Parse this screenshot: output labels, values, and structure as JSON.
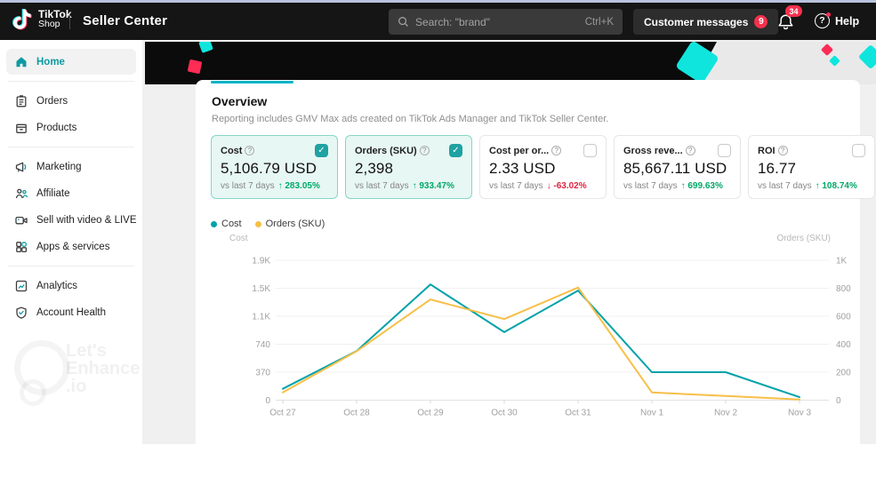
{
  "header": {
    "logo": {
      "line1": "TikTok",
      "line2": "Shop"
    },
    "app_title": "Seller Center",
    "search": {
      "icon": "search-icon",
      "placeholder": "Search: \"brand\"",
      "shortcut": "Ctrl+K"
    },
    "customer_messages": {
      "label": "Customer messages",
      "badge": "9"
    },
    "notifications": {
      "icon": "bell-icon",
      "badge": "34"
    },
    "help": {
      "icon": "question-circle-icon",
      "label": "Help"
    }
  },
  "sidebar": {
    "items": [
      {
        "label": "Home",
        "icon": "home-icon",
        "active": true,
        "divider_after": true
      },
      {
        "label": "Orders",
        "icon": "orders-icon"
      },
      {
        "label": "Products",
        "icon": "products-icon",
        "divider_after": true
      },
      {
        "label": "Marketing",
        "icon": "marketing-icon"
      },
      {
        "label": "Affiliate",
        "icon": "affiliate-icon"
      },
      {
        "label": "Sell with video & LIVE",
        "icon": "video-icon"
      },
      {
        "label": "Apps & services",
        "icon": "apps-icon",
        "divider_after": true
      },
      {
        "label": "Analytics",
        "icon": "analytics-icon"
      },
      {
        "label": "Account Health",
        "icon": "account-health-icon"
      }
    ],
    "watermark": {
      "line1": "Let's",
      "line2": "Enhance",
      "line3": ".io"
    }
  },
  "overview": {
    "title": "Overview",
    "subtitle": "Reporting includes GMV Max ads created on TikTok Ads Manager and TikTok Seller Center.",
    "cards": [
      {
        "label": "Cost",
        "value": "5,106.79 USD",
        "compare_label": "vs last 7 days",
        "delta": "283.05%",
        "direction": "up",
        "checked": true,
        "highlighted": true
      },
      {
        "label": "Orders (SKU)",
        "value": "2,398",
        "compare_label": "vs last 7 days",
        "delta": "933.47%",
        "direction": "up",
        "checked": true,
        "highlighted": true
      },
      {
        "label": "Cost per or...",
        "value": "2.33 USD",
        "compare_label": "vs last 7 days",
        "delta": "-63.02%",
        "direction": "down",
        "checked": false,
        "highlighted": false
      },
      {
        "label": "Gross reve...",
        "value": "85,667.11 USD",
        "compare_label": "vs last 7 days",
        "delta": "699.63%",
        "direction": "up",
        "checked": false,
        "highlighted": false
      },
      {
        "label": "ROI",
        "value": "16.77",
        "compare_label": "vs last 7 days",
        "delta": "108.74%",
        "direction": "up",
        "checked": false,
        "highlighted": false
      }
    ]
  },
  "chart_data": {
    "type": "line",
    "categories": [
      "Oct 27",
      "Oct 28",
      "Oct 29",
      "Oct 30",
      "Oct 31",
      "Nov 1",
      "Nov 2",
      "Nov 3"
    ],
    "series": [
      {
        "name": "Cost",
        "axis": "left",
        "color": "#00a2aa",
        "values": [
          150,
          650,
          1530,
          900,
          1450,
          370,
          370,
          40
        ]
      },
      {
        "name": "Orders (SKU)",
        "axis": "right",
        "color": "#f7bf47",
        "values": [
          55,
          350,
          720,
          580,
          805,
          55,
          30,
          5
        ]
      }
    ],
    "left_axis": {
      "title": "Cost",
      "max": 1850,
      "tick_labels": [
        "1.9K",
        "1.5K",
        "1.1K",
        "740",
        "370",
        "0"
      ]
    },
    "right_axis": {
      "title": "Orders (SKU)",
      "max": 1000,
      "tick_labels": [
        "1K",
        "800",
        "600",
        "400",
        "200",
        "0"
      ]
    },
    "grid": true,
    "legend_position": "top-left"
  },
  "colors": {
    "accent_teal": "#0c9aa2",
    "chart_cost": "#00a2aa",
    "chart_orders": "#f7bf47",
    "positive_green": "#00a868",
    "negative_red": "#e0243f",
    "badge_red": "#fe2c55",
    "tab_underline": "#00b2c8",
    "highlight_card_bg": "#e7f7f3"
  }
}
